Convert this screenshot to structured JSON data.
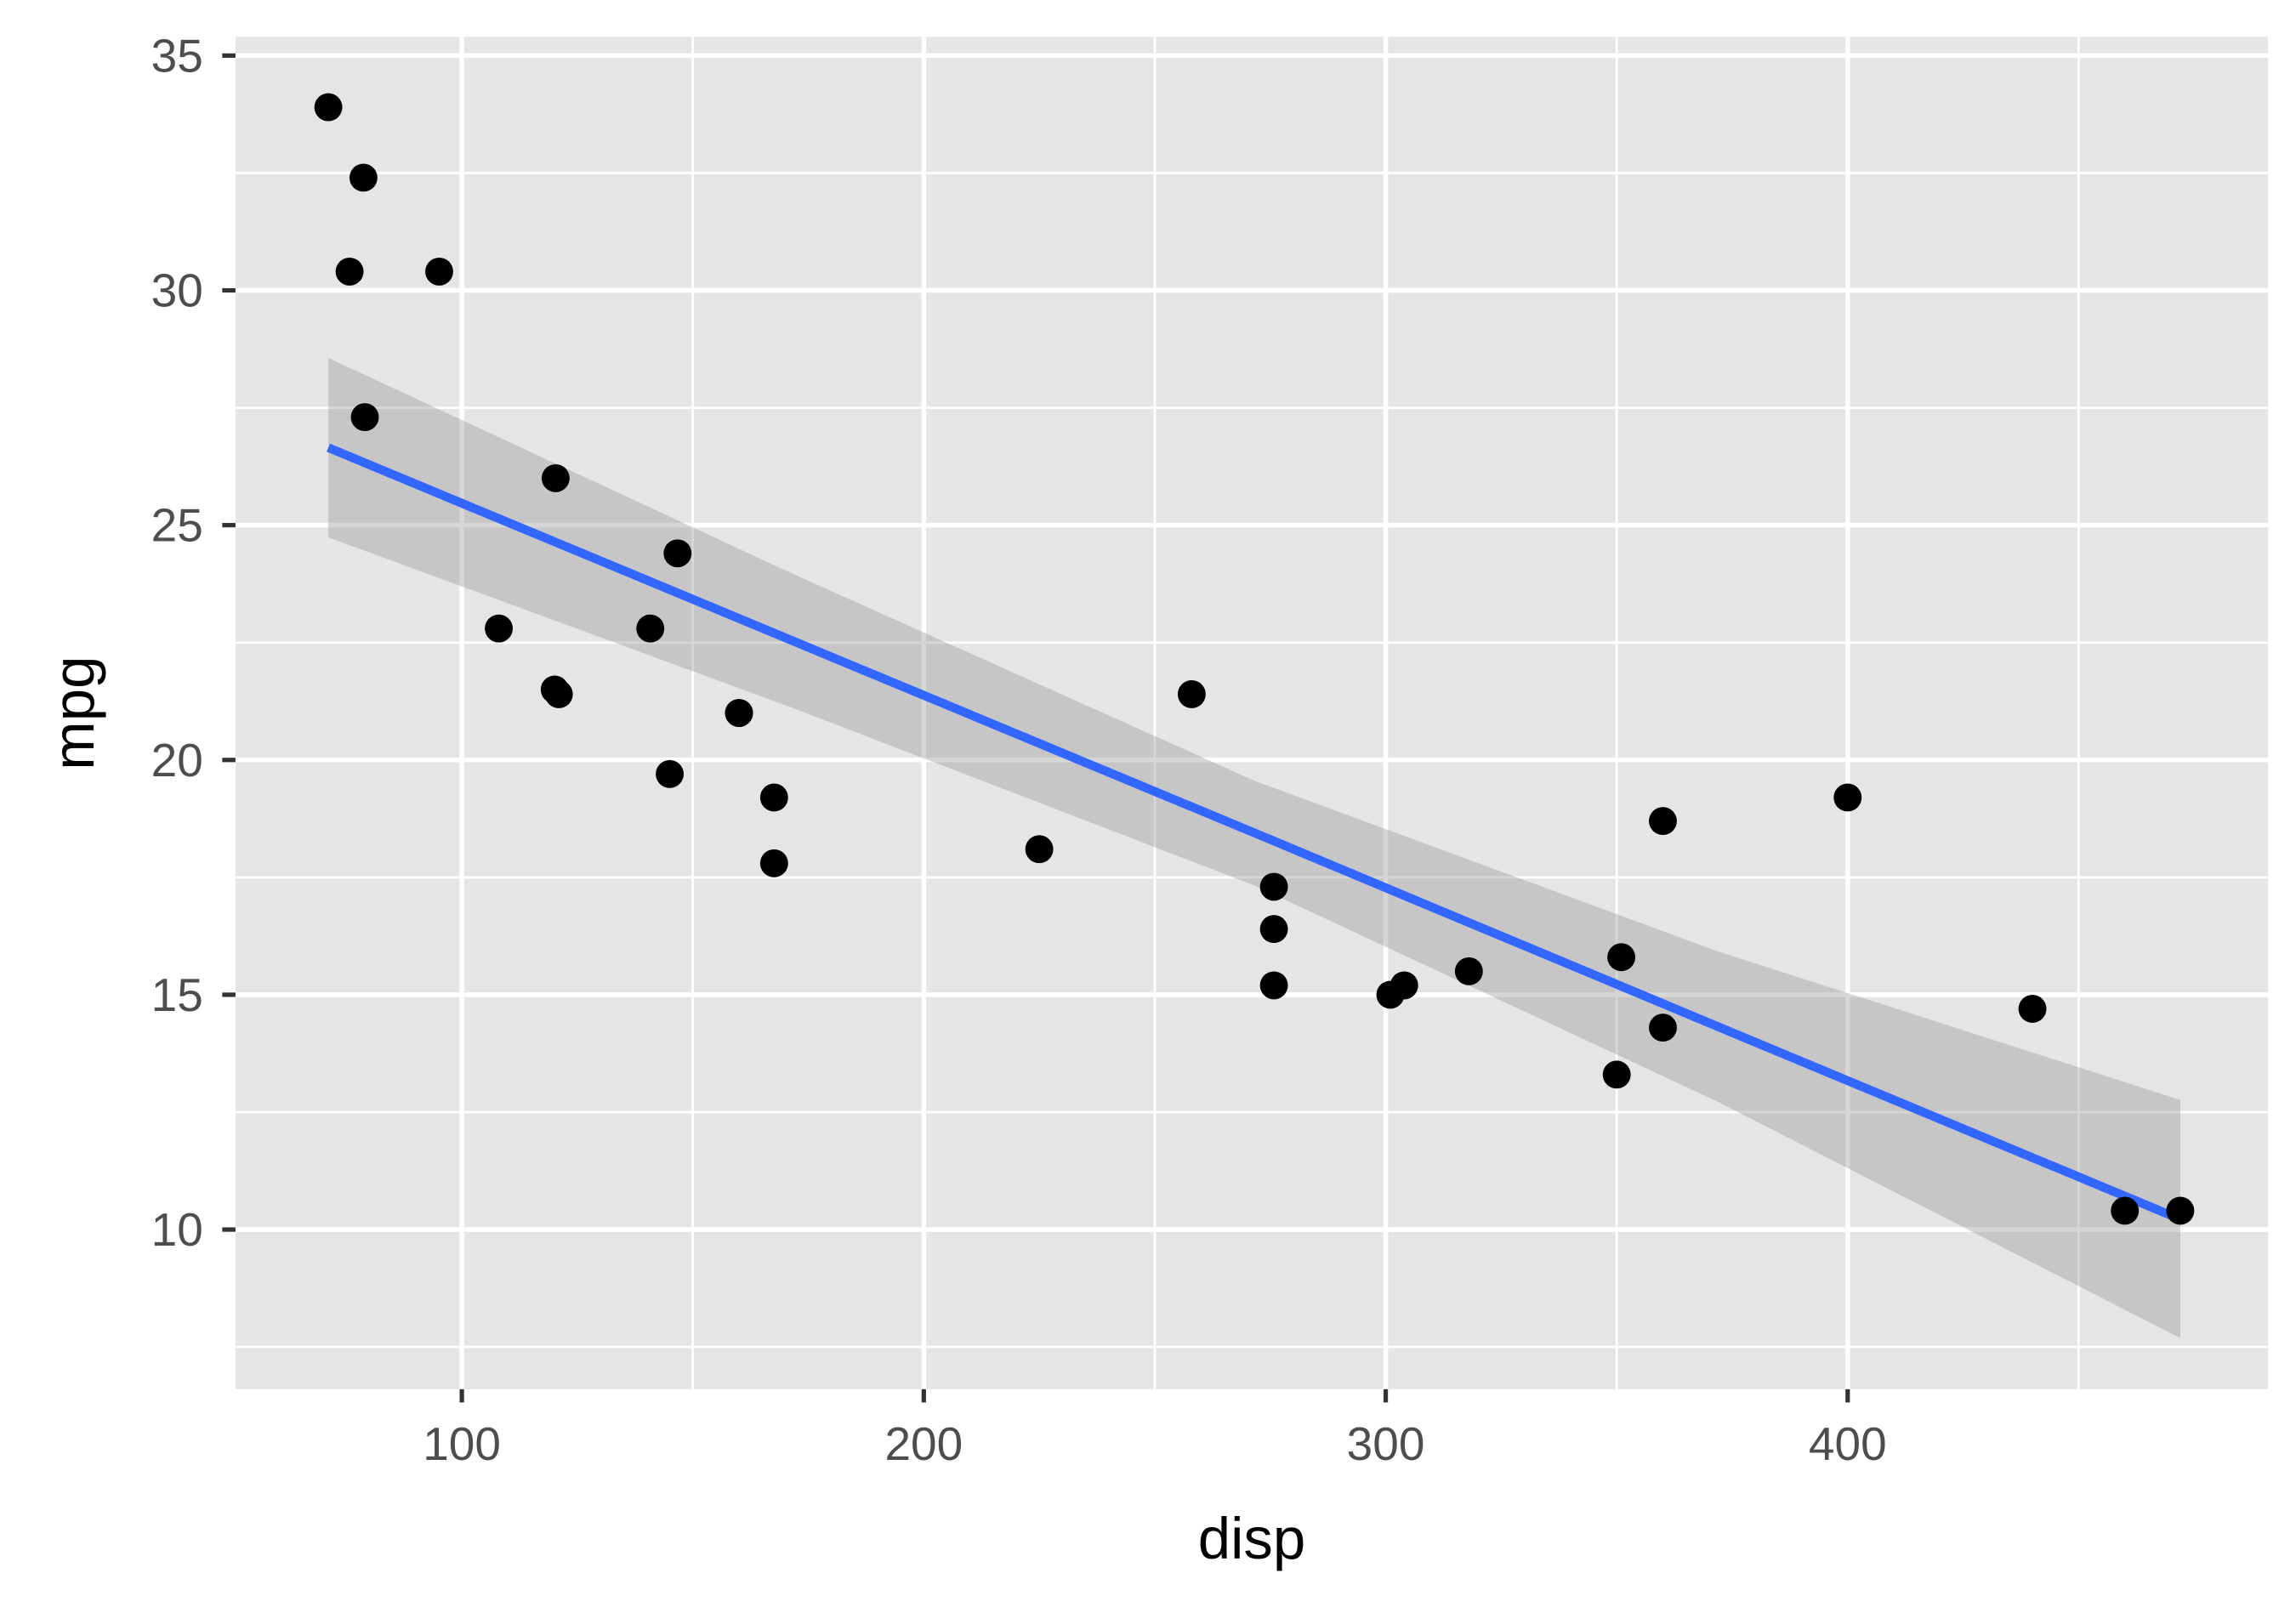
{
  "chart_data": {
    "type": "scatter",
    "title": "",
    "xlabel": "disp",
    "ylabel": "mpg",
    "xlim": [
      51,
      491
    ],
    "ylim": [
      6.6,
      35.4
    ],
    "x_ticks": [
      100,
      200,
      300,
      400
    ],
    "x_tick_labels": [
      "100",
      "200",
      "300",
      "400"
    ],
    "x_minor_ticks": [
      150,
      250,
      350,
      450
    ],
    "y_ticks": [
      10,
      15,
      20,
      25,
      30,
      35
    ],
    "y_tick_labels": [
      "10",
      "15",
      "20",
      "25",
      "30",
      "35"
    ],
    "y_minor_ticks": [
      7.5,
      12.5,
      17.5,
      22.5,
      27.5,
      32.5
    ],
    "grid": true,
    "legend": "none",
    "points": [
      {
        "x": 160,
        "y": 21.0
      },
      {
        "x": 160,
        "y": 21.0
      },
      {
        "x": 108,
        "y": 22.8
      },
      {
        "x": 258,
        "y": 21.4
      },
      {
        "x": 360,
        "y": 18.7
      },
      {
        "x": 225,
        "y": 18.1
      },
      {
        "x": 360,
        "y": 14.3
      },
      {
        "x": 146.7,
        "y": 24.4
      },
      {
        "x": 140.8,
        "y": 22.8
      },
      {
        "x": 167.6,
        "y": 19.2
      },
      {
        "x": 167.6,
        "y": 17.8
      },
      {
        "x": 275.8,
        "y": 16.4
      },
      {
        "x": 275.8,
        "y": 17.3
      },
      {
        "x": 275.8,
        "y": 15.2
      },
      {
        "x": 472,
        "y": 10.4
      },
      {
        "x": 460,
        "y": 10.4
      },
      {
        "x": 440,
        "y": 14.7
      },
      {
        "x": 78.7,
        "y": 32.4
      },
      {
        "x": 75.7,
        "y": 30.4
      },
      {
        "x": 71.1,
        "y": 33.9
      },
      {
        "x": 120.1,
        "y": 21.5
      },
      {
        "x": 318,
        "y": 15.5
      },
      {
        "x": 304,
        "y": 15.2
      },
      {
        "x": 350,
        "y": 13.3
      },
      {
        "x": 400,
        "y": 19.2
      },
      {
        "x": 79,
        "y": 27.3
      },
      {
        "x": 120.3,
        "y": 26.0
      },
      {
        "x": 95.1,
        "y": 30.4
      },
      {
        "x": 351,
        "y": 15.8
      },
      {
        "x": 145,
        "y": 19.7
      },
      {
        "x": 301,
        "y": 15.0
      },
      {
        "x": 121,
        "y": 21.4
      }
    ],
    "smooth": {
      "method": "lm",
      "line_color": "#3366ff",
      "band_color": "#999999",
      "x": [
        71.1,
        171.3,
        271.5,
        371.7,
        472.0
      ],
      "fit": [
        26.65,
        22.55,
        18.45,
        14.33,
        10.22
      ],
      "upper": [
        28.56,
        23.98,
        19.56,
        15.93,
        12.76
      ],
      "lower": [
        24.74,
        21.12,
        17.33,
        12.73,
        7.69
      ]
    },
    "colors": {
      "panel_bg": "#e5e5e5",
      "grid": "#ffffff",
      "point": "#000000",
      "tick_text": "#4d4d4d",
      "title_text": "#000000"
    }
  }
}
